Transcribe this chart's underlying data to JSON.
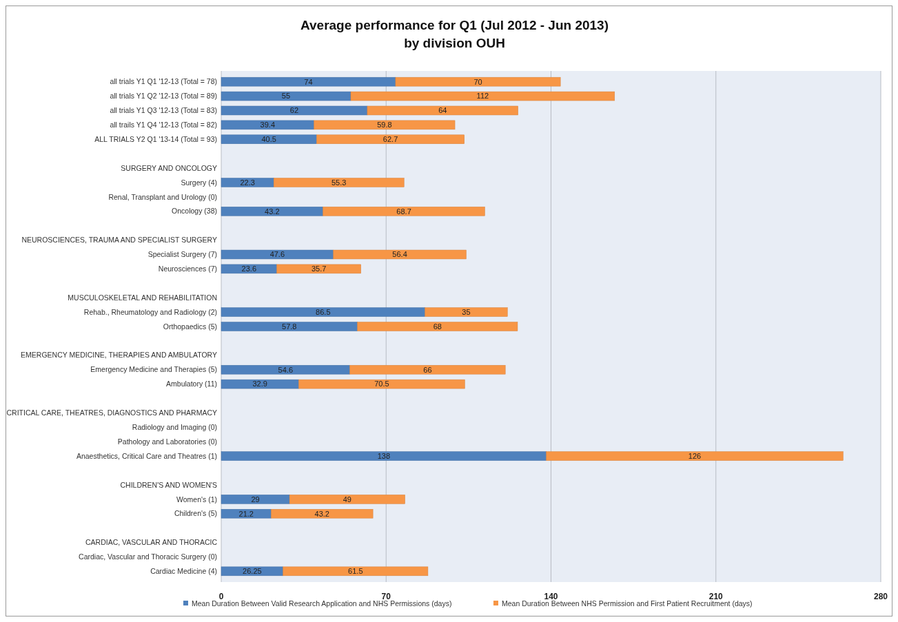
{
  "chart_data": {
    "type": "bar",
    "orientation": "horizontal",
    "stacked": true,
    "title": "Average performance for Q1 (Jul 2012 - Jun 2013)\nby division OUH",
    "categories": [
      "all trials Y1 Q1 '12-13 (Total = 78)",
      "all trials Y1 Q2 '12-13 (Total = 89)",
      "all trials Y1 Q3 '12-13 (Total = 83)",
      "all trails Y1 Q4 '12-13 (Total = 82)",
      "ALL TRIALS Y2 Q1 '13-14 (Total = 93)",
      null,
      "SURGERY AND ONCOLOGY",
      "Surgery (4)",
      "Renal, Transplant and Urology (0)",
      "Oncology (38)",
      null,
      "NEUROSCIENCES, TRAUMA AND SPECIALIST SURGERY",
      "Specialist Surgery (7)",
      "Neurosciences (7)",
      null,
      "MUSCULOSKELETAL AND REHABILITATION",
      "Rehab., Rheumatology and Radiology (2)",
      "Orthopaedics (5)",
      null,
      "EMERGENCY MEDICINE, THERAPIES AND AMBULATORY",
      "Emergency Medicine and Therapies (5)",
      "Ambulatory (11)",
      null,
      "CRITICAL CARE, THEATRES, DIAGNOSTICS AND PHARMACY",
      "Radiology and Imaging (0)",
      "Pathology and Laboratories (0)",
      "Anaesthetics, Critical Care and Theatres (1)",
      null,
      "CHILDREN'S AND WOMEN'S",
      "Women's (1)",
      "Children's (5)",
      null,
      "CARDIAC, VASCULAR AND THORACIC",
      "Cardiac, Vascular and Thoracic Surgery (0)",
      "Cardiac Medicine (4)"
    ],
    "series": [
      {
        "name": "Mean Duration Between Valid Research Application and NHS Permissions (days)",
        "color": "#4f81bd",
        "values": [
          74,
          55,
          62,
          39.4,
          40.5,
          null,
          null,
          22.3,
          null,
          43.2,
          null,
          null,
          47.6,
          23.6,
          null,
          null,
          86.5,
          57.8,
          null,
          null,
          54.6,
          32.9,
          null,
          null,
          null,
          null,
          138,
          null,
          null,
          29,
          21.2,
          null,
          null,
          null,
          26.25
        ]
      },
      {
        "name": "Mean Duration Between NHS Permission and First Patient Recruitment (days)",
        "color": "#f79646",
        "values": [
          70,
          112,
          64,
          59.8,
          62.7,
          null,
          null,
          55.3,
          null,
          68.7,
          null,
          null,
          56.4,
          35.7,
          null,
          null,
          35,
          68,
          null,
          null,
          66,
          70.5,
          null,
          null,
          null,
          null,
          126,
          null,
          null,
          49,
          43.2,
          null,
          null,
          null,
          61.5
        ]
      }
    ],
    "xlim": [
      0,
      280
    ],
    "xticks": [
      0,
      70,
      140,
      210,
      280
    ],
    "grid": "x",
    "legend": "bottom",
    "data_labels": true
  }
}
